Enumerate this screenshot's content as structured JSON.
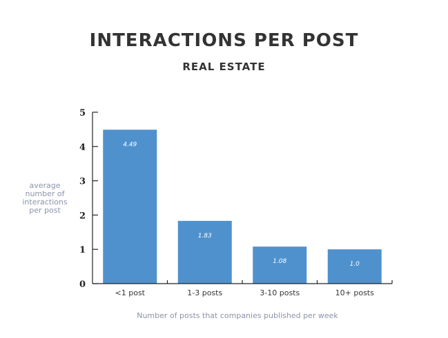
{
  "chart_data": {
    "type": "bar",
    "title": "INTERACTIONS PER POST",
    "subtitle": "REAL ESTATE",
    "ylabel": "average number of interactions per post",
    "xlabel": "Number of posts that companies published per week",
    "categories": [
      "<1 post",
      "1-3 posts",
      "3-10 posts",
      "10+ posts"
    ],
    "values": [
      4.49,
      1.83,
      1.08,
      1.0
    ],
    "value_labels": [
      "4.49",
      "1.83",
      "1.08",
      "1.0"
    ],
    "y_ticks": [
      "0",
      "1",
      "2",
      "3",
      "4",
      "5"
    ],
    "ylim": [
      0,
      5
    ],
    "grid": false,
    "legend": "none",
    "bar_color": "#4f91cd"
  }
}
